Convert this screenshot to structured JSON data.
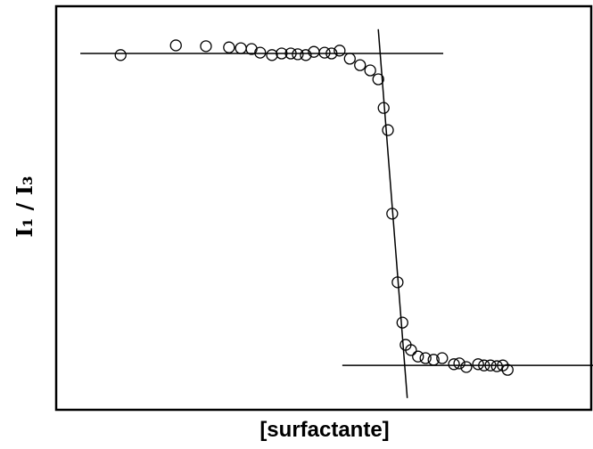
{
  "chart_data": {
    "type": "scatter",
    "x_label": "[surfactante]",
    "y_label": "I₁ / I₃",
    "xlim": [
      0,
      100
    ],
    "ylim": [
      0,
      100
    ],
    "color": "#000000",
    "x": [
      12.0,
      22.3,
      27.9,
      32.2,
      34.4,
      36.4,
      38.0,
      40.2,
      42.0,
      43.7,
      45.0,
      46.5,
      48.0,
      50.0,
      51.3,
      52.8,
      54.7,
      56.6,
      58.5,
      60.0,
      61.0,
      61.8,
      62.6,
      63.6,
      64.5,
      65.1,
      66.1,
      67.4,
      68.8,
      70.3,
      71.9,
      74.1,
      75.1,
      76.4,
      78.6,
      79.7,
      80.9,
      82.1,
      83.2,
      84.1
    ],
    "values": [
      87.9,
      90.3,
      90.1,
      89.8,
      89.6,
      89.4,
      88.5,
      87.9,
      88.3,
      88.3,
      88.1,
      87.9,
      88.7,
      88.5,
      88.3,
      89.0,
      87.0,
      85.4,
      84.1,
      81.9,
      74.8,
      69.3,
      48.6,
      31.6,
      21.6,
      16.1,
      14.8,
      13.2,
      12.8,
      12.4,
      12.8,
      11.3,
      11.5,
      10.6,
      11.3,
      11.0,
      11.0,
      10.8,
      11.0,
      9.9
    ],
    "lines": [
      {
        "x": [
          4.5,
          72.1
        ],
        "y": [
          88.3,
          88.3
        ]
      },
      {
        "x": [
          53.3,
          100
        ],
        "y": [
          11.0,
          11.0
        ]
      },
      {
        "x": [
          60.0,
          65.4
        ],
        "y": [
          94.3,
          2.9
        ]
      }
    ]
  }
}
